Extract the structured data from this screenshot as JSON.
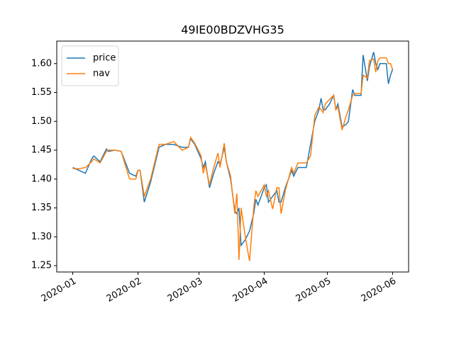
{
  "chart_data": {
    "type": "line",
    "title": "49IE00BDZVHG35",
    "x": [
      0,
      3,
      6,
      9,
      10,
      13,
      16,
      17,
      20,
      23,
      27,
      30,
      31,
      32,
      34,
      37,
      41,
      44,
      48,
      52,
      55,
      56,
      58,
      61,
      62,
      63,
      65,
      67,
      69,
      70,
      72,
      73,
      75,
      77,
      78,
      79,
      80,
      82,
      84,
      86,
      87,
      88,
      91,
      92,
      93,
      95,
      97,
      98,
      99,
      101,
      104,
      105,
      107,
      111,
      113,
      115,
      117,
      118,
      119,
      120,
      122,
      124,
      125,
      126,
      128,
      130,
      131,
      133,
      134,
      137,
      138,
      140,
      141,
      143,
      144,
      145,
      146,
      148,
      149,
      150,
      151,
      152
    ],
    "series": [
      {
        "name": "price",
        "color": "#1f77b4",
        "values": [
          1.42,
          1.415,
          1.41,
          1.435,
          1.44,
          1.43,
          1.452,
          1.448,
          1.45,
          1.448,
          1.41,
          1.405,
          1.415,
          1.415,
          1.36,
          1.395,
          1.455,
          1.46,
          1.46,
          1.455,
          1.455,
          1.47,
          1.46,
          1.435,
          1.42,
          1.43,
          1.385,
          1.41,
          1.43,
          1.425,
          1.455,
          1.43,
          1.4,
          1.345,
          1.34,
          1.35,
          1.285,
          1.295,
          1.31,
          1.34,
          1.365,
          1.355,
          1.385,
          1.39,
          1.36,
          1.37,
          1.38,
          1.36,
          1.36,
          1.385,
          1.415,
          1.405,
          1.42,
          1.42,
          1.46,
          1.5,
          1.52,
          1.54,
          1.52,
          1.52,
          1.53,
          1.545,
          1.52,
          1.53,
          1.49,
          1.495,
          1.5,
          1.555,
          1.545,
          1.545,
          1.615,
          1.57,
          1.595,
          1.62,
          1.6,
          1.59,
          1.6,
          1.6,
          1.6,
          1.565,
          1.58,
          1.59
        ]
      },
      {
        "name": "nav",
        "color": "#ff7f0e",
        "values": [
          1.418,
          1.418,
          1.42,
          1.43,
          1.435,
          1.428,
          1.448,
          1.45,
          1.45,
          1.448,
          1.4,
          1.4,
          1.415,
          1.415,
          1.37,
          1.4,
          1.46,
          1.46,
          1.465,
          1.45,
          1.455,
          1.472,
          1.462,
          1.44,
          1.41,
          1.425,
          1.39,
          1.42,
          1.445,
          1.42,
          1.462,
          1.43,
          1.405,
          1.34,
          1.375,
          1.26,
          1.35,
          1.3,
          1.258,
          1.35,
          1.38,
          1.37,
          1.39,
          1.37,
          1.38,
          1.348,
          1.385,
          1.385,
          1.34,
          1.38,
          1.42,
          1.41,
          1.428,
          1.428,
          1.44,
          1.51,
          1.525,
          1.52,
          1.515,
          1.53,
          1.538,
          1.545,
          1.52,
          1.525,
          1.485,
          1.51,
          1.52,
          1.545,
          1.548,
          1.548,
          1.58,
          1.575,
          1.605,
          1.608,
          1.585,
          1.605,
          1.61,
          1.61,
          1.61,
          1.6,
          1.6,
          1.59
        ]
      }
    ],
    "xlim": [
      -7.6,
      159.6
    ],
    "xticks": [
      {
        "value": 0,
        "label": "2020-01"
      },
      {
        "value": 31,
        "label": "2020-02"
      },
      {
        "value": 60,
        "label": "2020-03"
      },
      {
        "value": 91,
        "label": "2020-04"
      },
      {
        "value": 121,
        "label": "2020-05"
      },
      {
        "value": 152,
        "label": "2020-06"
      }
    ],
    "ylim": [
      1.239,
      1.639
    ],
    "yticks": [
      1.25,
      {
        "value": 1.3,
        "label": "1.30"
      },
      1.35,
      {
        "value": 1.4,
        "label": "1.40"
      },
      1.45,
      {
        "value": 1.5,
        "label": "1.50"
      },
      1.55,
      {
        "value": 1.6,
        "label": "1.60"
      }
    ],
    "legend": "upper left"
  }
}
